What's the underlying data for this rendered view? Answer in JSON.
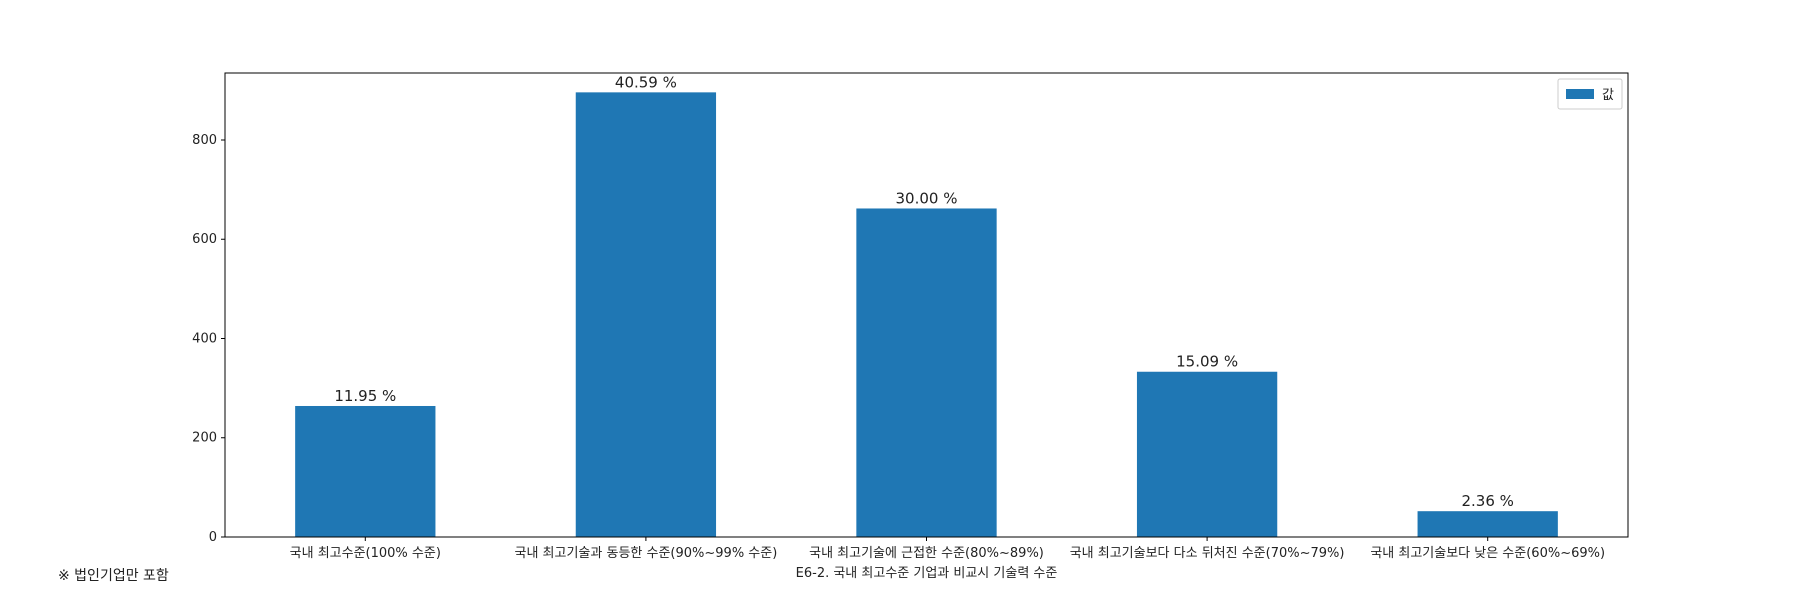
{
  "chart_data": {
    "type": "bar",
    "title": "",
    "xlabel": "E6-2. 국내 최고수준 기업과 비교시 기술력 수준",
    "ylabel": "",
    "categories": [
      "국내 최고수준(100% 수준)",
      "국내 최고기술과 동등한 수준(90%~99% 수준)",
      "국내 최고기술에 근접한 수준(80%~89%)",
      "국내 최고기술보다 다소 뒤처진 수준(70%~79%)",
      "국내 최고기술보다 낮은 수준(60%~69%)"
    ],
    "series": [
      {
        "name": "값",
        "values": [
          264,
          896,
          662,
          333,
          52
        ],
        "labels": [
          "11.95 %",
          "40.59 %",
          "30.00 %",
          "15.09 %",
          "2.36 %"
        ],
        "color": "#1f77b4"
      }
    ],
    "ylim": [
      0,
      935
    ],
    "yticks": [
      0,
      200,
      400,
      600,
      800
    ],
    "legend": "top-right",
    "grid": false
  },
  "footnote": "※ 법인기업만 포함"
}
